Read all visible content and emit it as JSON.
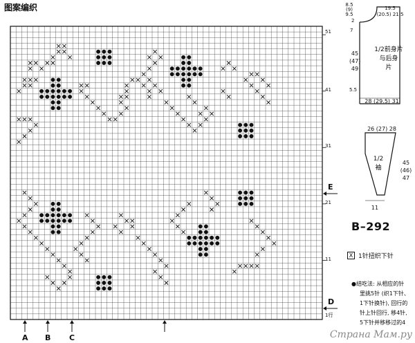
{
  "title": "图案编织",
  "row_labels": [
    "51",
    "41",
    "31",
    "21",
    "11",
    "1行"
  ],
  "markers": {
    "E": "E",
    "D": "D",
    "A": "A",
    "B": "B",
    "C": "C"
  },
  "body_piece": {
    "label1": "1/2前身片",
    "label2": "与后身",
    "label3": "片",
    "top_left": "8.5",
    "top_paren": "(9)",
    "top_bottom": "9.5",
    "top_right_1": "19.5",
    "top_right_2": "(20.5) 21.5",
    "side_2": "2",
    "side_7": "7",
    "height_1": "45",
    "height_2": "(47)",
    "height_3": "49",
    "hem": "5.5",
    "width": "28 (29.5) 31"
  },
  "sleeve_piece": {
    "label1": "1/2",
    "label2": "袖",
    "top_width": "26 (27) 28",
    "height_1": "45",
    "height_2": "(46)",
    "height_3": "47",
    "bottom_width": "11"
  },
  "code": "B–292",
  "legend": {
    "symbol": "X",
    "text": "1针扭织下针"
  },
  "notes": [
    "●结吃法: 从相应的针",
    "里挑5针 (织1下针、",
    "1下针换针), 回行的",
    "针上针回行, 移4针,",
    "5下针并移移过的4"
  ],
  "watermark": "Страна Мам.ру"
}
